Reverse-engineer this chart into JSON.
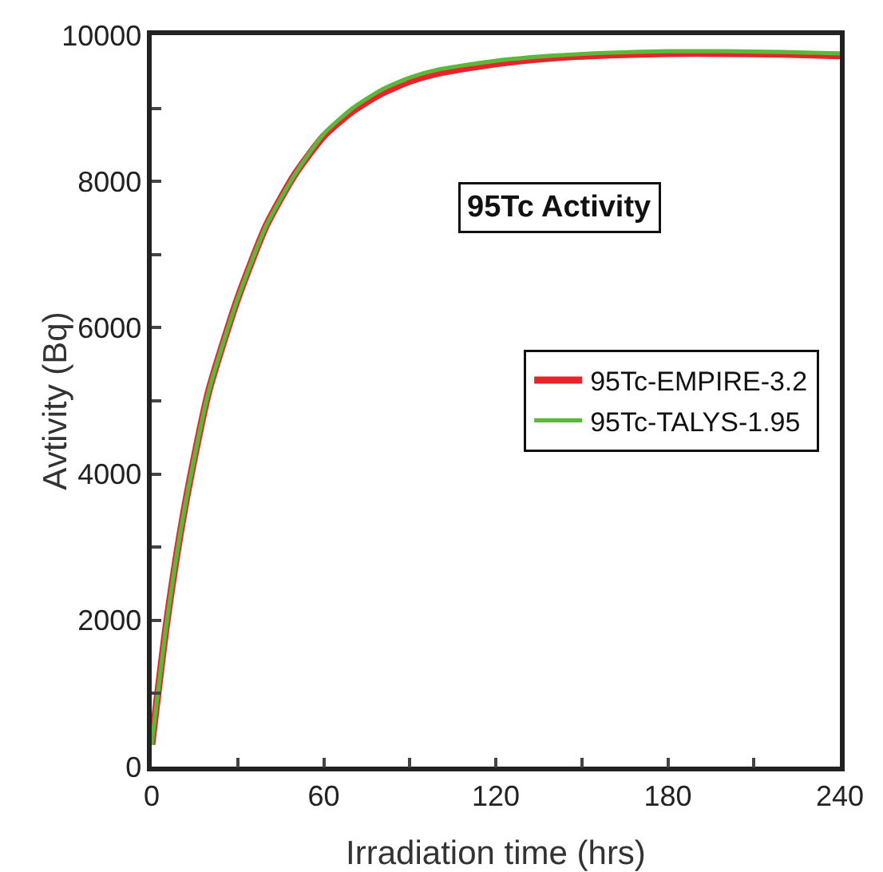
{
  "chart_data": {
    "type": "line",
    "xlabel": "Irradiation time (hrs)",
    "ylabel": "Avtivity (Bq)",
    "annotations": [
      "95Tc Activity"
    ],
    "x": [
      0,
      5,
      10,
      15,
      20,
      30,
      40,
      50,
      60,
      70,
      80,
      90,
      100,
      120,
      140,
      160,
      180,
      200,
      220,
      240
    ],
    "series": [
      {
        "name": "95Tc-EMPIRE-3.2",
        "color": "#e8232a",
        "values": [
          300,
          1900,
          3200,
          4250,
          5150,
          6400,
          7400,
          8100,
          8620,
          8960,
          9200,
          9370,
          9480,
          9610,
          9690,
          9730,
          9750,
          9750,
          9740,
          9720
        ]
      },
      {
        "name": "95Tc-TALYS-1.95",
        "color": "#5cb83a",
        "values": [
          300,
          1900,
          3200,
          4250,
          5150,
          6400,
          7400,
          8100,
          8650,
          9000,
          9250,
          9420,
          9530,
          9650,
          9720,
          9760,
          9780,
          9780,
          9770,
          9750
        ]
      }
    ],
    "xlim": [
      0,
      240
    ],
    "xticks": [
      0,
      {
        "value": 30,
        "label": null
      },
      60,
      {
        "value": 90,
        "label": null
      },
      120,
      {
        "value": 150,
        "label": null
      },
      180,
      {
        "value": 210,
        "label": null
      },
      240
    ],
    "ylim": [
      0,
      10000
    ],
    "yticks": [
      0,
      {
        "value": 1000,
        "label": null
      },
      2000,
      {
        "value": 3000,
        "label": null
      },
      4000,
      {
        "value": 5000,
        "label": null
      },
      6000,
      {
        "value": 7000,
        "label": null
      },
      8000,
      {
        "value": 9000,
        "label": null
      },
      10000
    ],
    "grid": false,
    "legend": "right",
    "line_style": "solid",
    "marker": "none"
  }
}
